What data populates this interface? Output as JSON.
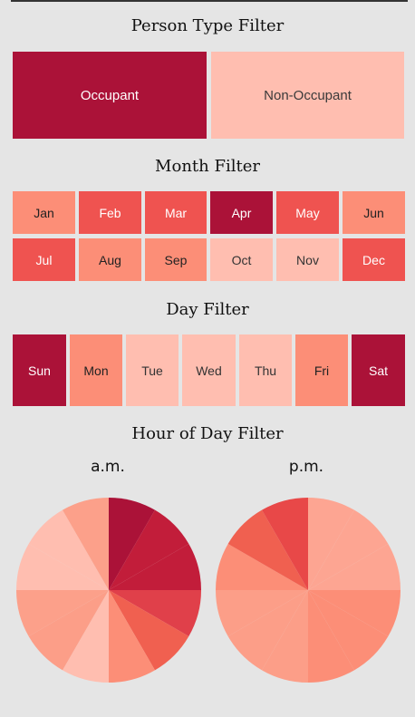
{
  "person_type": {
    "title": "Person Type Filter",
    "options": [
      {
        "label": "Occupant",
        "color": "#ab1238",
        "text_color": "#ffffff"
      },
      {
        "label": "Non-Occupant",
        "color": "#ffbeb0",
        "text_color": "#3a3a3a"
      }
    ]
  },
  "month": {
    "title": "Month Filter",
    "options": [
      {
        "label": "Jan",
        "color": "#fc8e77",
        "text_color": "#222222"
      },
      {
        "label": "Feb",
        "color": "#ef5350",
        "text_color": "#ffffff"
      },
      {
        "label": "Mar",
        "color": "#ef5350",
        "text_color": "#ffffff"
      },
      {
        "label": "Apr",
        "color": "#ab1238",
        "text_color": "#ffffff"
      },
      {
        "label": "May",
        "color": "#ef5350",
        "text_color": "#ffffff"
      },
      {
        "label": "Jun",
        "color": "#fc8e77",
        "text_color": "#222222"
      },
      {
        "label": "Jul",
        "color": "#ef5350",
        "text_color": "#ffffff"
      },
      {
        "label": "Aug",
        "color": "#fc8e77",
        "text_color": "#222222"
      },
      {
        "label": "Sep",
        "color": "#fc8e77",
        "text_color": "#222222"
      },
      {
        "label": "Oct",
        "color": "#ffbeb0",
        "text_color": "#333333"
      },
      {
        "label": "Nov",
        "color": "#ffbeb0",
        "text_color": "#333333"
      },
      {
        "label": "Dec",
        "color": "#ef5350",
        "text_color": "#ffffff"
      }
    ]
  },
  "day": {
    "title": "Day Filter",
    "options": [
      {
        "label": "Sun",
        "color": "#ab1238",
        "text_color": "#ffffff"
      },
      {
        "label": "Mon",
        "color": "#fc8e77",
        "text_color": "#222222"
      },
      {
        "label": "Tue",
        "color": "#ffbeb0",
        "text_color": "#333333"
      },
      {
        "label": "Wed",
        "color": "#ffbeb0",
        "text_color": "#333333"
      },
      {
        "label": "Thu",
        "color": "#ffbeb0",
        "text_color": "#333333"
      },
      {
        "label": "Fri",
        "color": "#fc8e77",
        "text_color": "#222222"
      },
      {
        "label": "Sat",
        "color": "#ab1238",
        "text_color": "#ffffff"
      }
    ]
  },
  "hour": {
    "title": "Hour of Day Filter",
    "am": {
      "label": "a.m.",
      "slice_colors": [
        "#ab1238",
        "#c21d3a",
        "#c21d3a",
        "#e0404a",
        "#f06050",
        "#fc8e77",
        "#ffbeb0",
        "#fc9e88",
        "#fca08a",
        "#ffbeb0",
        "#ffbeb0",
        "#fca08a"
      ]
    },
    "pm": {
      "label": "p.m.",
      "slice_colors": [
        "#fda592",
        "#fda592",
        "#fda592",
        "#fc8e77",
        "#fc8e77",
        "#fc8e77",
        "#fc9e88",
        "#fc9e88",
        "#fc9e88",
        "#fc8e77",
        "#f06050",
        "#e84848"
      ]
    }
  }
}
